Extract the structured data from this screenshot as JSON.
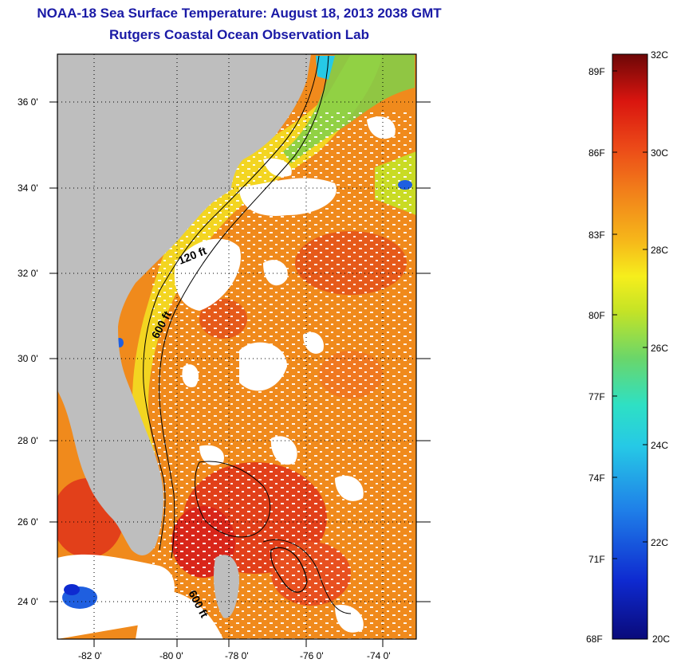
{
  "title": {
    "line1": "NOAA-18 Sea Surface Temperature:  August 18, 2013 2038 GMT",
    "line2": "Rutgers Coastal Ocean Observation Lab"
  },
  "map": {
    "lat_labels": [
      "36 0'",
      "34 0'",
      "32 0'",
      "30 0'",
      "28 0'",
      "26 0'",
      "24 0'"
    ],
    "lon_labels": [
      "-82 0'",
      "-80 0'",
      "-78 0'",
      "-76 0'",
      "-74 0'"
    ],
    "contour_labels": [
      "120 ft",
      "600 ft",
      "600 ft"
    ]
  },
  "colorbar": {
    "fahrenheit_labels": [
      "89F",
      "86F",
      "83F",
      "80F",
      "77F",
      "74F",
      "71F",
      "68F"
    ],
    "celsius_labels": [
      "32C",
      "30C",
      "28C",
      "26C",
      "24C",
      "22C",
      "20C"
    ]
  },
  "colors": {
    "land": "#bebebe",
    "cloud": "#ffffff",
    "warm_water": "#f08a1c",
    "hot_water": "#e2401a",
    "coastal_yellow": "#f3dd22",
    "shelf_green": "#7fd04a",
    "title_blue": "#1a1aa6"
  }
}
